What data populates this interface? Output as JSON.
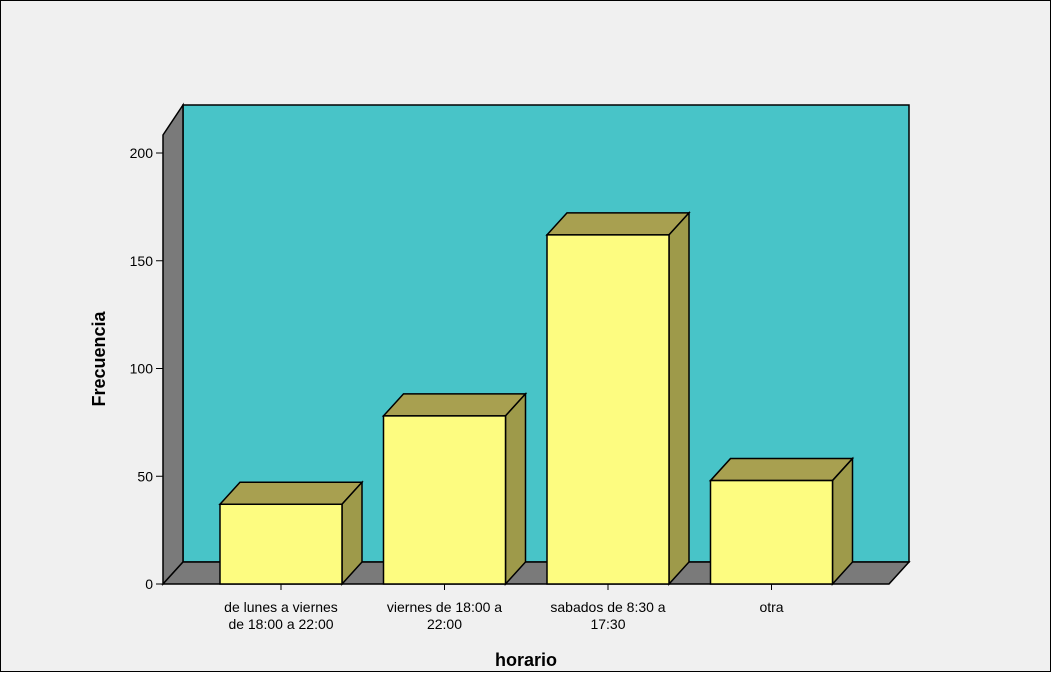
{
  "colors": {
    "wall_back": "#48c4c8",
    "wall_side": "#7a7a7a",
    "floor": "#7a7a7a",
    "bar_front": "#fdfc80",
    "bar_top": "#a8a050",
    "bar_side": "#9e9a4a",
    "frame_bg": "#f0f0f0"
  },
  "chart_data": {
    "type": "bar",
    "categories": [
      [
        "de lunes a viernes",
        "de 18:00 a 22:00"
      ],
      [
        "viernes de 18:00 a",
        "22:00"
      ],
      [
        "sabados de 8:30 a",
        "17:30"
      ],
      [
        "otra"
      ]
    ],
    "values": [
      37,
      78,
      162,
      48
    ],
    "xlabel": "horario",
    "ylabel": "Frecuencia",
    "ylim": [
      0,
      200
    ],
    "yticks": [
      0,
      50,
      100,
      150,
      200
    ],
    "grid": false,
    "style": "3d"
  }
}
